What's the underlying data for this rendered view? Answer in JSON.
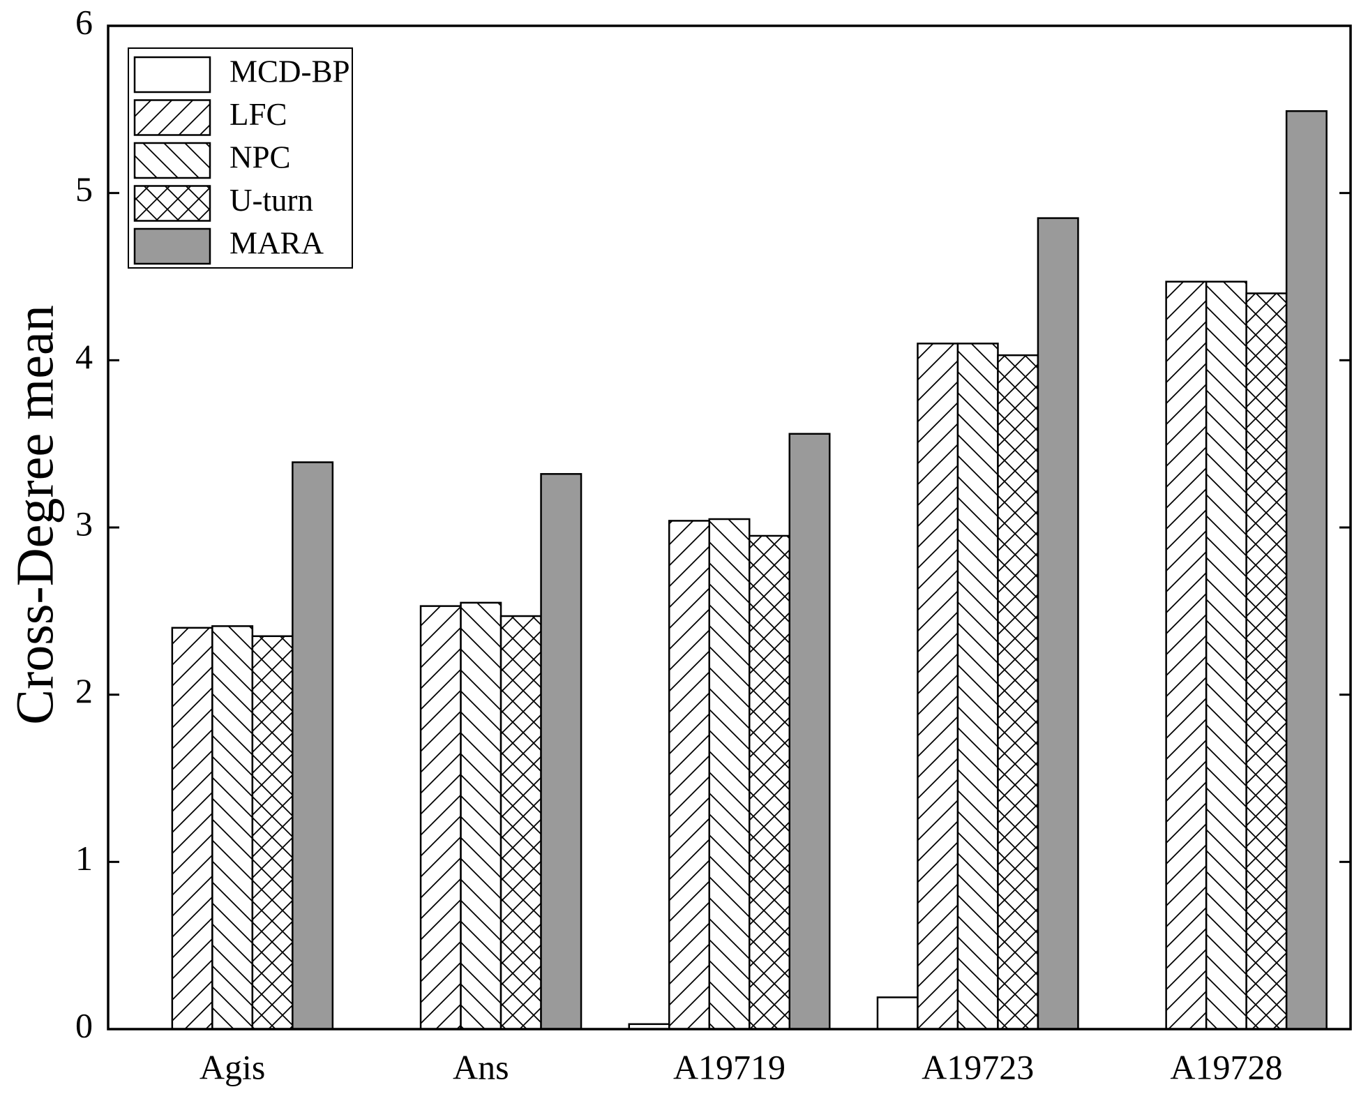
{
  "chart_data": {
    "type": "bar",
    "y_label": "Cross-Degree mean",
    "categories": [
      "Agis",
      "Ans",
      "A19719",
      "A19723",
      "A19728"
    ],
    "series": [
      {
        "name": "MCD-BP",
        "color": "#ffffff",
        "pattern": "none",
        "values": [
          0,
          0,
          0.03,
          0.19,
          0
        ]
      },
      {
        "name": "LFC",
        "color": "#ffffff",
        "pattern": "forward",
        "values": [
          2.4,
          2.53,
          3.04,
          4.1,
          4.47
        ]
      },
      {
        "name": "NPC",
        "color": "#ffffff",
        "pattern": "back",
        "values": [
          2.41,
          2.55,
          3.05,
          4.1,
          4.47
        ]
      },
      {
        "name": "U-turn",
        "color": "#ffffff",
        "pattern": "cross",
        "values": [
          2.35,
          2.47,
          2.95,
          4.03,
          4.4
        ]
      },
      {
        "name": "MARA",
        "color": "#9a9a9a",
        "pattern": "none",
        "values": [
          3.39,
          3.32,
          3.56,
          4.85,
          5.49
        ]
      }
    ],
    "ylim": [
      0,
      6
    ],
    "yticks": [
      0,
      1,
      2,
      3,
      4,
      5,
      6
    ],
    "legend": "upper-left",
    "grid": false
  }
}
